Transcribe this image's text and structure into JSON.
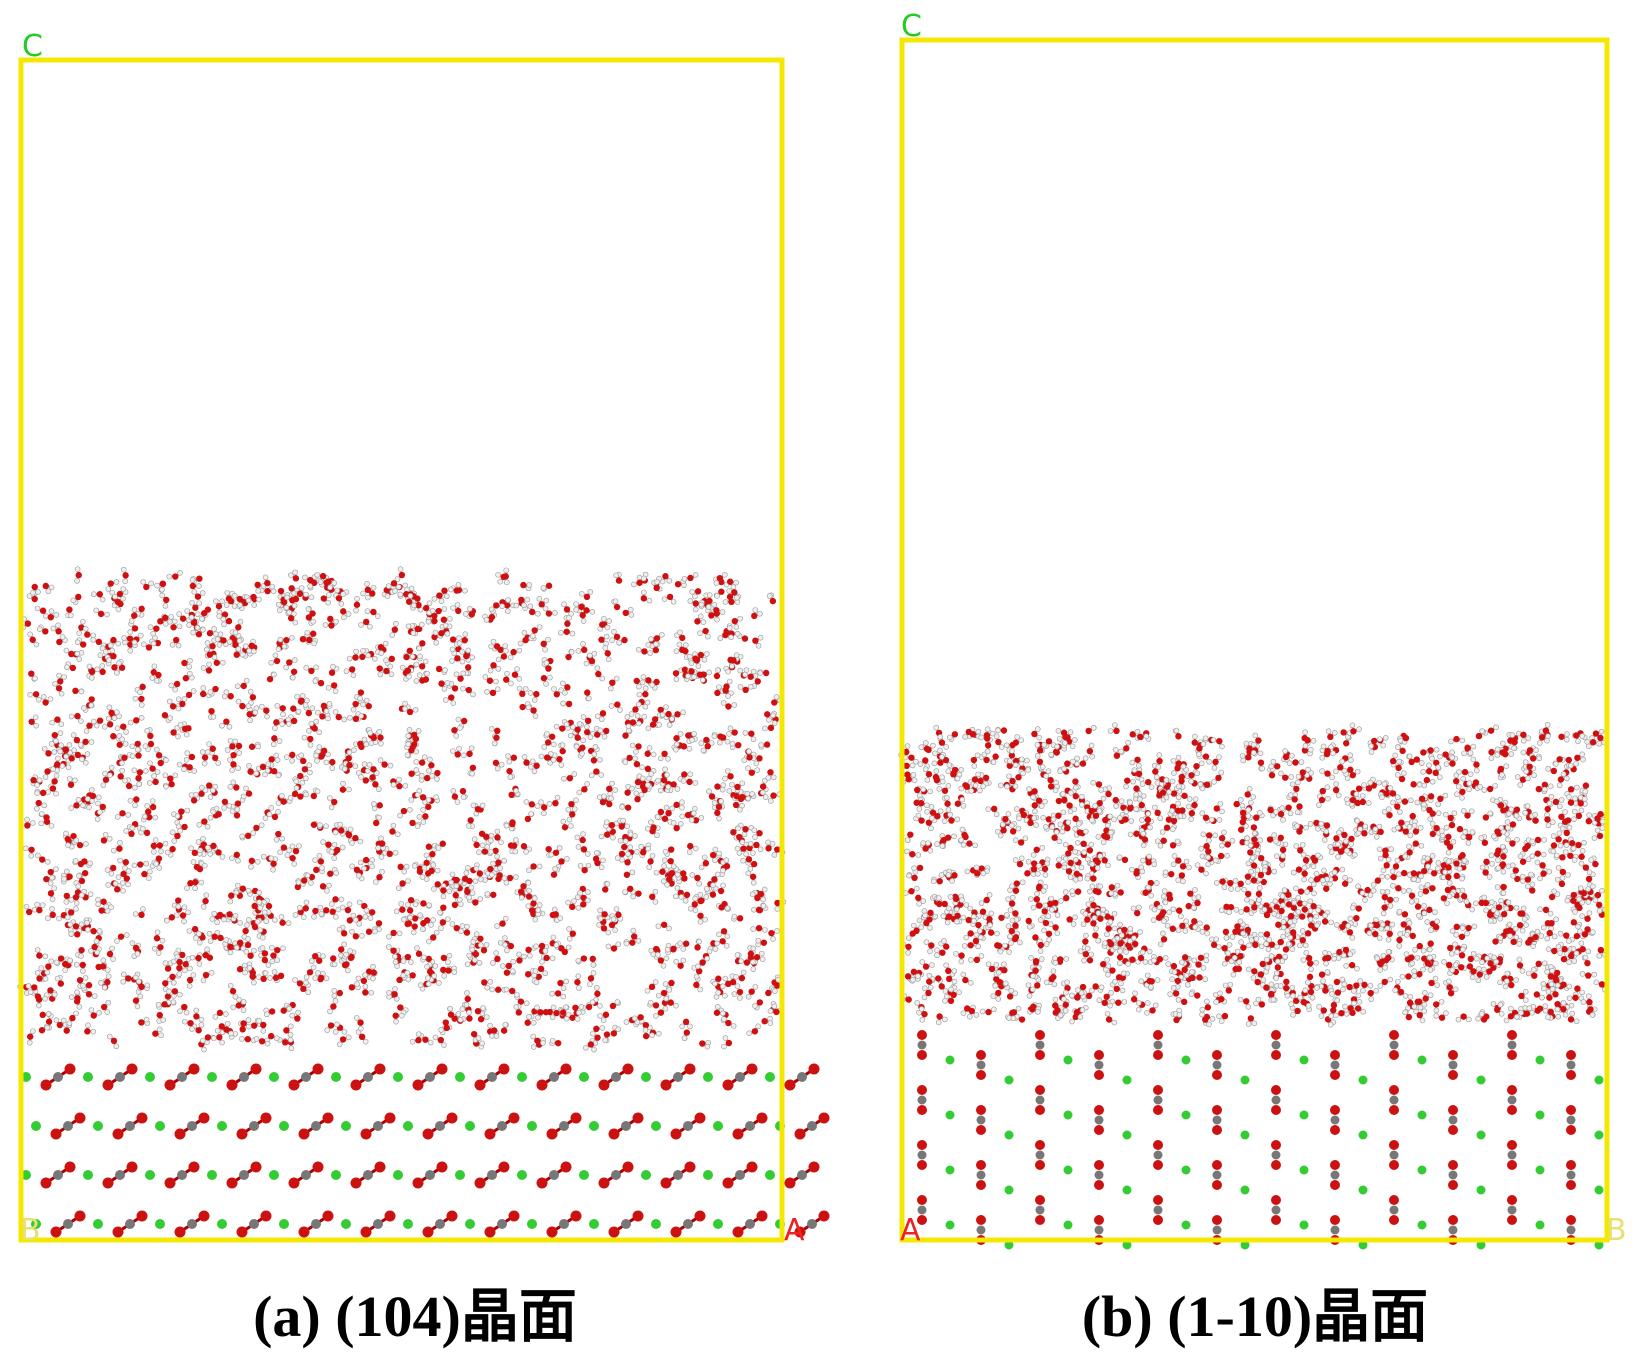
{
  "panels": [
    {
      "corner_labels": {
        "top": "C",
        "bottom_left": "B",
        "bottom_right": "A"
      },
      "caption": "(a) (104)晶面"
    },
    {
      "corner_labels": {
        "top": "C",
        "bottom_left": "A",
        "bottom_right": "B"
      },
      "caption": "(b) (1-10)晶面"
    }
  ]
}
